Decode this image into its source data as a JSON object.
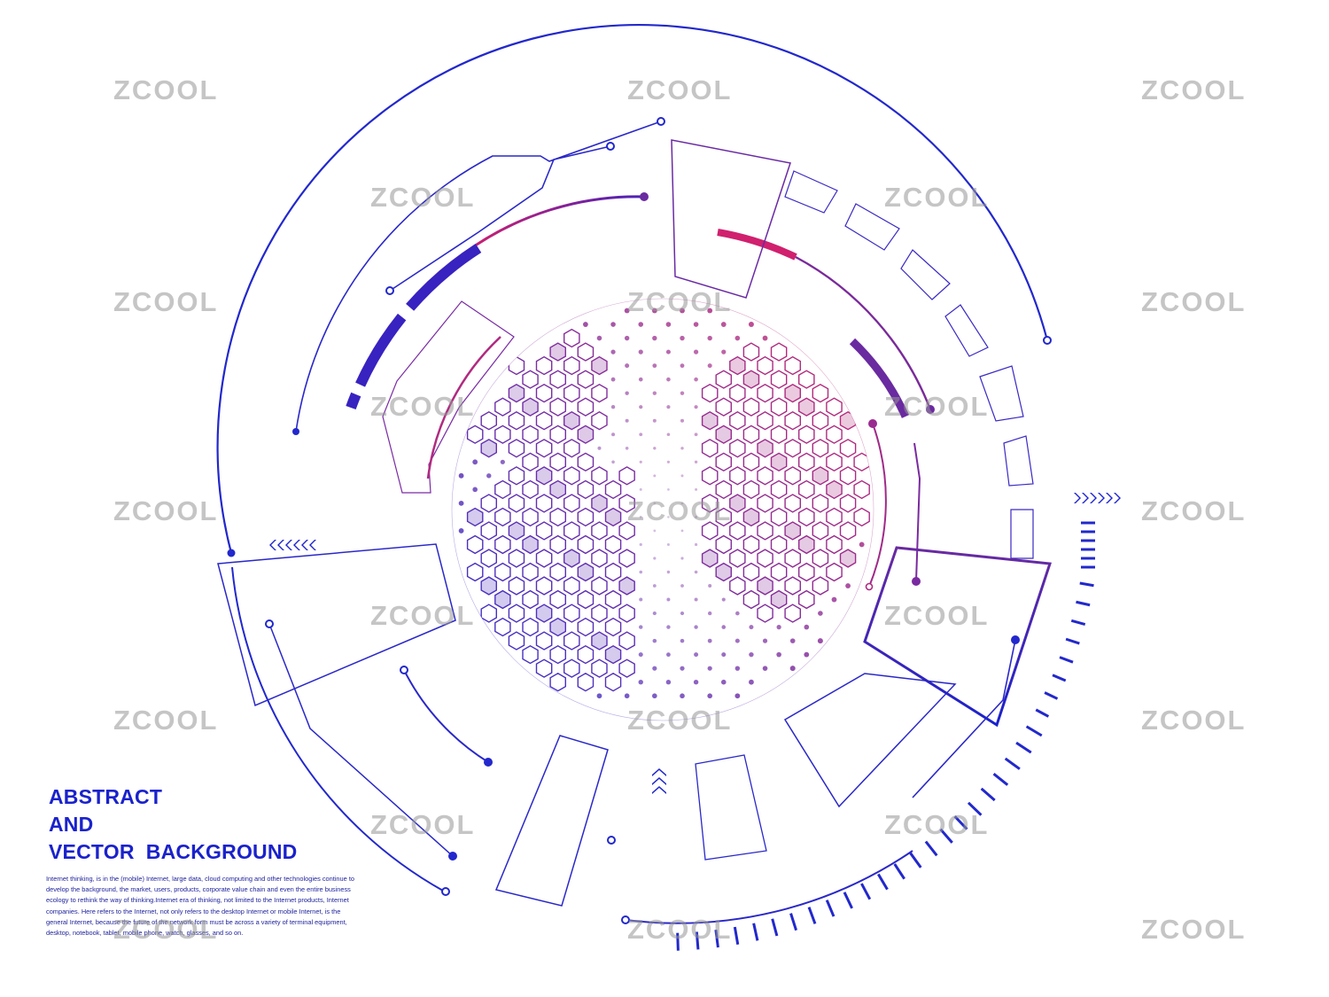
{
  "heading": {
    "line1": "ABSTRACT",
    "line2": "AND",
    "line3": "VECTOR  BACKGROUND"
  },
  "description": "Internet thinking, is in the (mobile) Internet, large data, cloud computing and other technologies continue to develop the background, the market, users, products, corporate value chain and even the entire business ecology to rethink the way of thinking.Internet era of thinking, not limited to the Internet products, Internet companies. Here refers to the Internet, not only refers to the desktop Internet or mobile Internet, is the general Internet, because the future of the network form must be across a variety of terminal equipment, desktop, notebook, tablet, mobile phone, watch, glasses, and so on.",
  "watermark": "ZCOOL",
  "colors": {
    "primary_blue": "#1a22cc",
    "violet": "#6a2a9a",
    "magenta": "#c42a7a"
  },
  "icons": {
    "globe": "hexagon-globe-icon",
    "arrows_right": "chevron-right-arrows-icon",
    "arrows_left": "chevron-left-arrows-icon",
    "arrows_up": "chevron-up-arrows-icon"
  }
}
